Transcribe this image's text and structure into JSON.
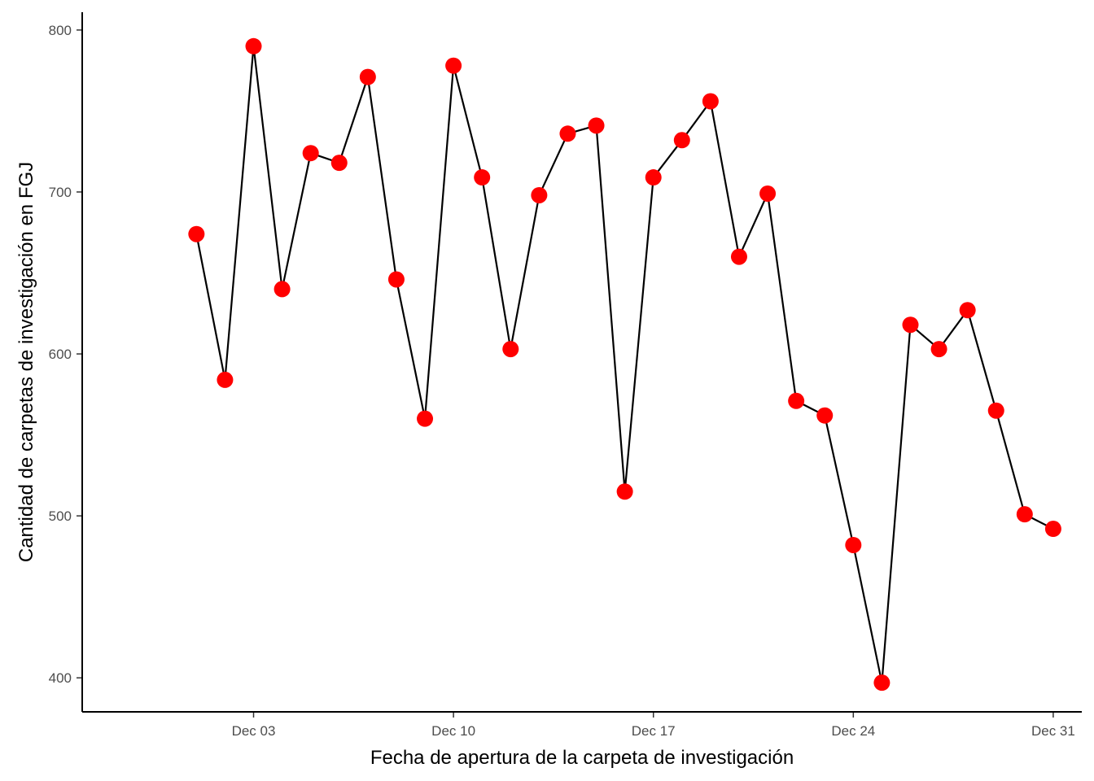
{
  "chart_data": {
    "type": "line",
    "title": "",
    "xlabel": "Fecha de apertura de la carpeta de investigación",
    "ylabel": "Cantidad de carpetas de investigación en FGJ",
    "x": [
      "2020-12-01",
      "2020-12-02",
      "2020-12-03",
      "2020-12-04",
      "2020-12-05",
      "2020-12-06",
      "2020-12-07",
      "2020-12-08",
      "2020-12-09",
      "2020-12-10",
      "2020-12-11",
      "2020-12-12",
      "2020-12-13",
      "2020-12-14",
      "2020-12-15",
      "2020-12-16",
      "2020-12-17",
      "2020-12-18",
      "2020-12-19",
      "2020-12-20",
      "2020-12-21",
      "2020-12-22",
      "2020-12-23",
      "2020-12-24",
      "2020-12-25",
      "2020-12-26",
      "2020-12-27",
      "2020-12-28",
      "2020-12-29",
      "2020-12-30",
      "2020-12-31"
    ],
    "series": [
      {
        "values": [
          674,
          584,
          790,
          640,
          724,
          718,
          771,
          646,
          560,
          778,
          709,
          603,
          698,
          736,
          741,
          515,
          709,
          732,
          756,
          660,
          699,
          571,
          562,
          482,
          397,
          618,
          603,
          627,
          565,
          501,
          492
        ],
        "line_color": "#000000",
        "marker_color": "#ff0000"
      }
    ],
    "x_ticks": [
      {
        "date": "2020-12-03",
        "label": "Dec 03"
      },
      {
        "date": "2020-12-10",
        "label": "Dec 10"
      },
      {
        "date": "2020-12-17",
        "label": "Dec 17"
      },
      {
        "date": "2020-12-24",
        "label": "Dec 24"
      },
      {
        "date": "2020-12-31",
        "label": "Dec 31"
      }
    ],
    "y_ticks": [
      400,
      500,
      600,
      700,
      800
    ],
    "ylim": [
      379,
      811
    ],
    "xlim": [
      "2020-11-27",
      "2021-01-01"
    ],
    "grid": false,
    "legend": "none"
  }
}
